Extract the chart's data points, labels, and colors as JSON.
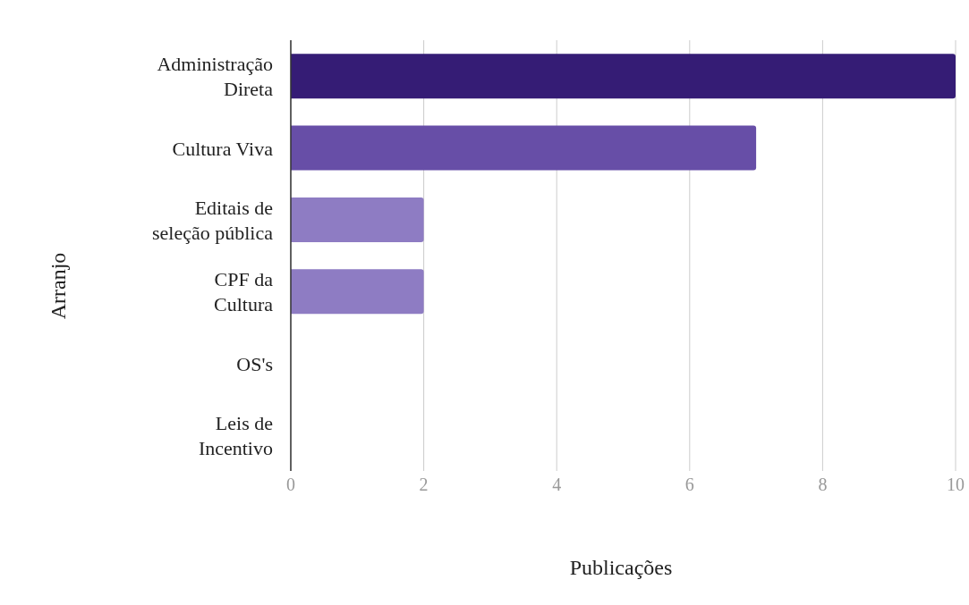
{
  "chart_data": {
    "type": "bar",
    "orientation": "horizontal",
    "xlabel": "Publicações",
    "ylabel": "Arranjo",
    "categories": [
      "Administração Direta",
      "Cultura Viva",
      "Editais de seleção pública",
      "CPF da Cultura",
      "OS's",
      "Leis de Incentivo"
    ],
    "values": [
      10,
      7,
      2,
      2,
      0,
      0
    ],
    "colors": [
      "#351c75",
      "#674ea7",
      "#8e7cc3",
      "#8e7cc3",
      "#8e7cc3",
      "#8e7cc3"
    ],
    "xlim": [
      0,
      10
    ],
    "xticks": [
      0,
      2,
      4,
      6,
      8,
      10
    ],
    "grid": "x",
    "legend": false
  }
}
